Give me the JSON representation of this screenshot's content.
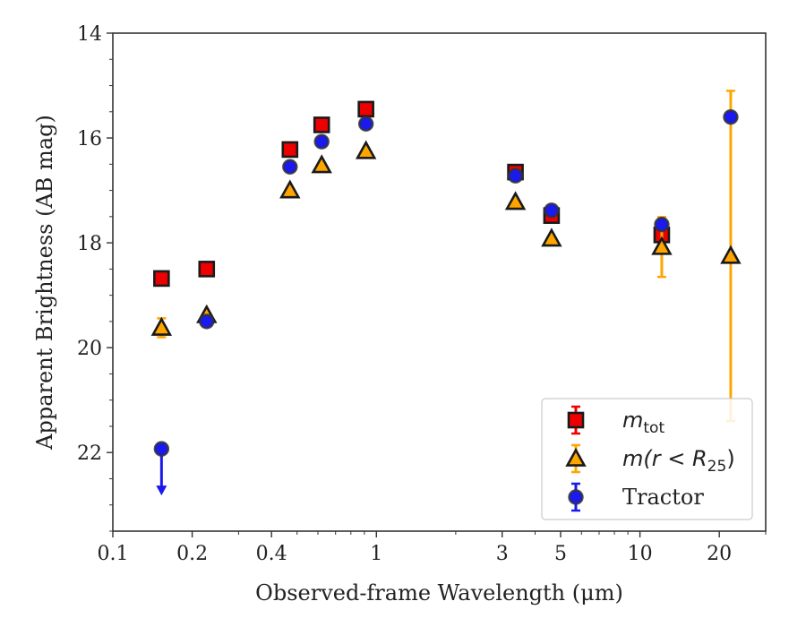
{
  "chart_data": {
    "type": "scatter",
    "title": "",
    "xlabel": "Observed-frame Wavelength (μm)",
    "ylabel": "Apparent Brightness (AB mag)",
    "xscale": "log",
    "xlim": [
      0.1,
      30
    ],
    "ylim": [
      23.5,
      14
    ],
    "y_inverted": true,
    "x_ticks": [
      {
        "value": 0.1,
        "label": "0.1"
      },
      {
        "value": 0.2,
        "label": "0.2"
      },
      {
        "value": 0.4,
        "label": "0.4"
      },
      {
        "value": 1,
        "label": "1"
      },
      {
        "value": 3,
        "label": "3"
      },
      {
        "value": 5,
        "label": "5"
      },
      {
        "value": 10,
        "label": "10"
      },
      {
        "value": 20,
        "label": "20"
      }
    ],
    "y_ticks": [
      {
        "value": 14,
        "label": "14"
      },
      {
        "value": 16,
        "label": "16"
      },
      {
        "value": 18,
        "label": "18"
      },
      {
        "value": 20,
        "label": "20"
      },
      {
        "value": 22,
        "label": "22"
      }
    ],
    "grid": false,
    "legend_position": "lower-right",
    "series": [
      {
        "name": "m_tot",
        "legend_base": "m",
        "legend_sub": "tot",
        "marker": "square",
        "color": "#ee0000",
        "errcolor": "#ee0000",
        "points": [
          {
            "x": 0.153,
            "y": 18.68
          },
          {
            "x": 0.227,
            "y": 18.5
          },
          {
            "x": 0.47,
            "y": 16.22
          },
          {
            "x": 0.62,
            "y": 15.75
          },
          {
            "x": 0.913,
            "y": 15.45
          },
          {
            "x": 3.37,
            "y": 16.65
          },
          {
            "x": 4.62,
            "y": 17.48
          },
          {
            "x": 12.1,
            "y": 17.85
          }
        ]
      },
      {
        "name": "m(r < R25)",
        "legend_base": "m",
        "legend_mid": "(r < R",
        "legend_sub": "25",
        "legend_end": ")",
        "marker": "triangle",
        "color": "#ffa500",
        "errcolor": "#ffa500",
        "points": [
          {
            "x": 0.153,
            "y": 19.62,
            "yerr": 0.18
          },
          {
            "x": 0.227,
            "y": 19.38
          },
          {
            "x": 0.47,
            "y": 17.0
          },
          {
            "x": 0.62,
            "y": 16.52
          },
          {
            "x": 0.913,
            "y": 16.25
          },
          {
            "x": 3.37,
            "y": 17.22
          },
          {
            "x": 4.62,
            "y": 17.92
          },
          {
            "x": 12.1,
            "y": 18.08,
            "yerr": 0.57
          },
          {
            "x": 22.1,
            "y": 18.25,
            "yerr_low": 3.15,
            "yerr_high": 3.15
          }
        ]
      },
      {
        "name": "Tractor",
        "legend_base": "Tractor",
        "marker": "circle",
        "color": "#1a1aee",
        "errcolor": "#1a1aee",
        "points": [
          {
            "x": 0.153,
            "y": 21.93,
            "upper_limit": true
          },
          {
            "x": 0.227,
            "y": 19.5
          },
          {
            "x": 0.47,
            "y": 16.55
          },
          {
            "x": 0.62,
            "y": 16.07
          },
          {
            "x": 0.913,
            "y": 15.73
          },
          {
            "x": 3.37,
            "y": 16.72
          },
          {
            "x": 4.62,
            "y": 17.38
          },
          {
            "x": 12.1,
            "y": 17.65
          },
          {
            "x": 22.1,
            "y": 15.6
          }
        ]
      }
    ]
  }
}
